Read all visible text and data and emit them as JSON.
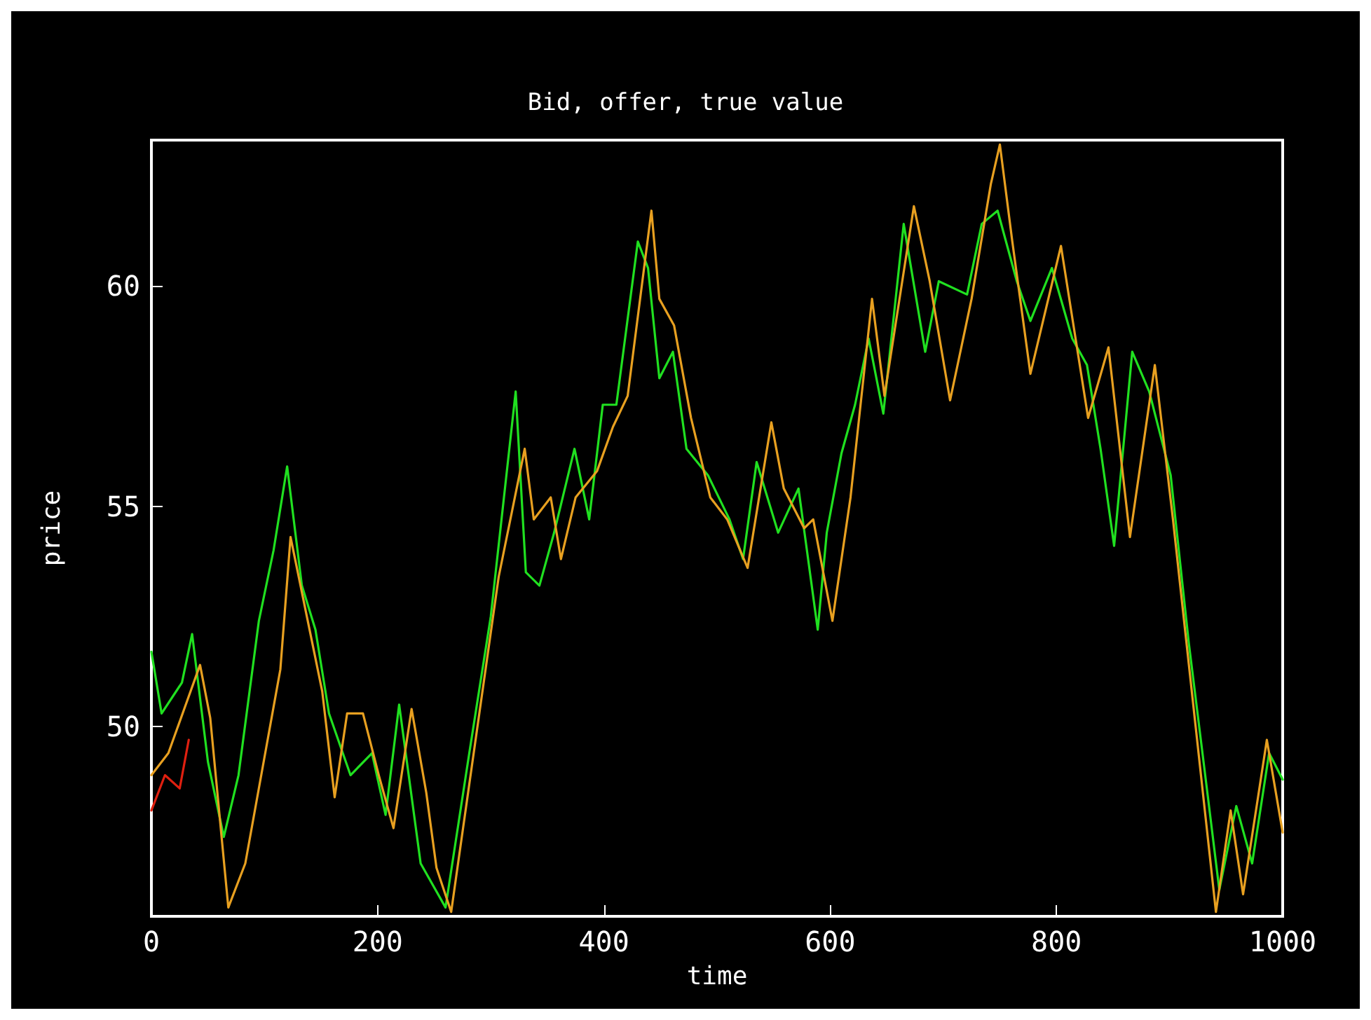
{
  "chart_data": {
    "type": "line",
    "title": "Bid, offer, true value",
    "xlabel": "time",
    "ylabel": "price",
    "xlim": [
      0,
      1000
    ],
    "ylim": [
      45.7,
      63.3
    ],
    "xticks": [
      0,
      200,
      400,
      600,
      800,
      1000
    ],
    "yticks": [
      50,
      55,
      60
    ],
    "grid": false,
    "marker": "none",
    "line_style": "solid",
    "series": [
      {
        "color": "#e02010",
        "x": [
          0,
          12,
          25,
          33
        ],
        "values": [
          48.1,
          48.9,
          48.6,
          49.7
        ]
      },
      {
        "color": "#20e020",
        "x": [
          0,
          9,
          27,
          36,
          50,
          64,
          77,
          95,
          108,
          120,
          133,
          145,
          157,
          176,
          195,
          207,
          219,
          238,
          260,
          281,
          300,
          322,
          331,
          343,
          356,
          374,
          387,
          399,
          411,
          430,
          439,
          449,
          461,
          473,
          492,
          511,
          523,
          535,
          554,
          572,
          589,
          597,
          610,
          622,
          634,
          647,
          665,
          684,
          696,
          721,
          734,
          748,
          765,
          777,
          796,
          814,
          827,
          839,
          851,
          867,
          882,
          901,
          917,
          932,
          944,
          959,
          973,
          988,
          1000
        ],
        "values": [
          51.7,
          50.3,
          51.0,
          52.1,
          49.2,
          47.5,
          48.9,
          52.4,
          54.0,
          55.9,
          53.2,
          52.2,
          50.3,
          48.9,
          49.4,
          48.0,
          50.5,
          46.9,
          45.9,
          49.4,
          52.5,
          57.6,
          53.5,
          53.2,
          54.4,
          56.3,
          54.7,
          57.3,
          57.3,
          61.0,
          60.4,
          57.9,
          58.5,
          56.3,
          55.7,
          54.7,
          53.8,
          56.0,
          54.4,
          55.4,
          52.2,
          54.4,
          56.2,
          57.3,
          58.8,
          57.1,
          61.4,
          58.5,
          60.1,
          59.8,
          61.4,
          61.7,
          60.1,
          59.2,
          60.4,
          58.8,
          58.2,
          56.3,
          54.1,
          58.5,
          57.6,
          55.7,
          51.9,
          48.8,
          46.3,
          48.2,
          46.9,
          49.4,
          48.8
        ]
      },
      {
        "color": "#e8a020",
        "x": [
          0,
          15,
          43,
          52,
          68,
          83,
          114,
          123,
          151,
          162,
          173,
          187,
          201,
          214,
          230,
          243,
          252,
          265,
          307,
          330,
          338,
          353,
          362,
          375,
          394,
          408,
          421,
          442,
          449,
          462,
          477,
          494,
          509,
          527,
          548,
          559,
          577,
          585,
          602,
          618,
          637,
          648,
          674,
          688,
          706,
          725,
          742,
          750,
          761,
          777,
          804,
          828,
          846,
          865,
          887,
          903,
          941,
          954,
          965,
          986,
          1000
        ],
        "values": [
          48.9,
          49.4,
          51.4,
          50.2,
          45.9,
          46.9,
          51.3,
          54.3,
          50.8,
          48.4,
          50.3,
          50.3,
          48.9,
          47.7,
          50.4,
          48.5,
          46.8,
          45.8,
          53.4,
          56.3,
          54.7,
          55.2,
          53.8,
          55.2,
          55.8,
          56.8,
          57.5,
          61.7,
          59.7,
          59.1,
          57.0,
          55.2,
          54.7,
          53.6,
          56.9,
          55.4,
          54.5,
          54.7,
          52.4,
          55.2,
          59.7,
          57.5,
          61.8,
          60.1,
          57.4,
          59.7,
          62.3,
          63.2,
          61.0,
          58.0,
          60.9,
          57.0,
          58.6,
          54.3,
          58.2,
          54.7,
          45.8,
          48.1,
          46.2,
          49.7,
          47.6
        ]
      }
    ]
  }
}
